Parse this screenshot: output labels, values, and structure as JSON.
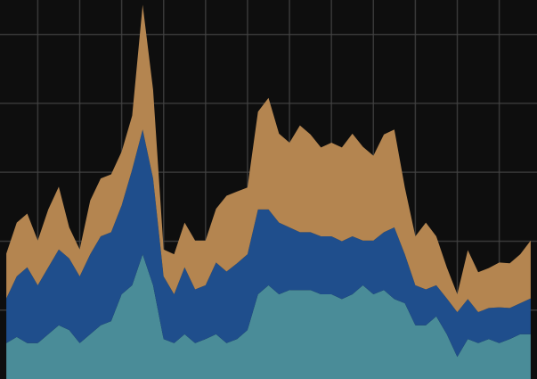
{
  "chart_data": {
    "type": "stacked-area",
    "x": [
      0.25,
      0.5,
      0.75,
      1,
      1.25,
      1.5,
      1.75,
      2,
      2.25,
      2.5,
      2.75,
      3,
      3.25,
      3.5,
      3.75,
      4,
      4.25,
      4.5,
      4.75,
      5,
      5.25,
      5.5,
      5.75,
      6,
      6.25,
      6.5,
      6.75,
      7,
      7.25,
      7.5,
      7.75,
      8,
      8.25,
      8.5,
      8.75,
      9,
      9.25,
      9.5,
      9.75,
      10,
      10.25,
      10.5,
      10.75,
      11,
      11.25,
      11.5,
      11.75,
      12,
      12.25,
      12.5,
      12.75
    ],
    "series": [
      {
        "color": "#4a8c98",
        "values": [
          0.52,
          0.61,
          0.52,
          0.52,
          0.65,
          0.78,
          0.71,
          0.52,
          0.65,
          0.78,
          0.84,
          1.23,
          1.36,
          1.81,
          1.36,
          0.58,
          0.52,
          0.65,
          0.52,
          0.58,
          0.65,
          0.52,
          0.58,
          0.71,
          1.23,
          1.36,
          1.23,
          1.29,
          1.29,
          1.29,
          1.23,
          1.23,
          1.16,
          1.23,
          1.36,
          1.23,
          1.29,
          1.16,
          1.1,
          0.78,
          0.78,
          0.91,
          0.65,
          0.32,
          0.58,
          0.52,
          0.58,
          0.52,
          0.58,
          0.65,
          0.65
        ]
      },
      {
        "color": "#1f4e8c",
        "values": [
          0.65,
          0.88,
          1.1,
          0.84,
          0.97,
          1.1,
          1.04,
          0.97,
          1.16,
          1.29,
          1.29,
          1.29,
          1.68,
          1.81,
          1.55,
          0.91,
          0.71,
          0.97,
          0.78,
          0.78,
          1.04,
          1.04,
          1.1,
          1.1,
          1.23,
          1.1,
          1.04,
          0.91,
          0.84,
          0.84,
          0.84,
          0.84,
          0.84,
          0.84,
          0.65,
          0.78,
          0.84,
          1.04,
          0.71,
          0.58,
          0.52,
          0.45,
          0.52,
          0.65,
          0.58,
          0.45,
          0.45,
          0.52,
          0.45,
          0.45,
          0.52
        ]
      },
      {
        "color": "#b48550",
        "values": [
          0.65,
          0.78,
          0.78,
          0.65,
          0.84,
          0.91,
          0.45,
          0.39,
          0.78,
          0.84,
          0.84,
          0.78,
          0.78,
          1.81,
          1.29,
          0.39,
          0.58,
          0.65,
          0.71,
          0.65,
          0.78,
          1.1,
          1.04,
          0.97,
          1.42,
          1.62,
          1.29,
          1.23,
          1.55,
          1.42,
          1.29,
          1.36,
          1.36,
          1.49,
          1.36,
          1.23,
          1.42,
          1.42,
          0.97,
          0.71,
          0.97,
          0.71,
          0.45,
          0.26,
          0.71,
          0.58,
          0.58,
          0.65,
          0.65,
          0.71,
          0.84
        ]
      }
    ],
    "xlim": [
      0.1,
      12.9
    ],
    "xticks": [
      1,
      2,
      3,
      4,
      5,
      6,
      7,
      8,
      9,
      10,
      11,
      12
    ],
    "ylim": [
      0,
      5.5
    ],
    "yticks": [
      1,
      2,
      3,
      4,
      5
    ],
    "grid": true
  }
}
